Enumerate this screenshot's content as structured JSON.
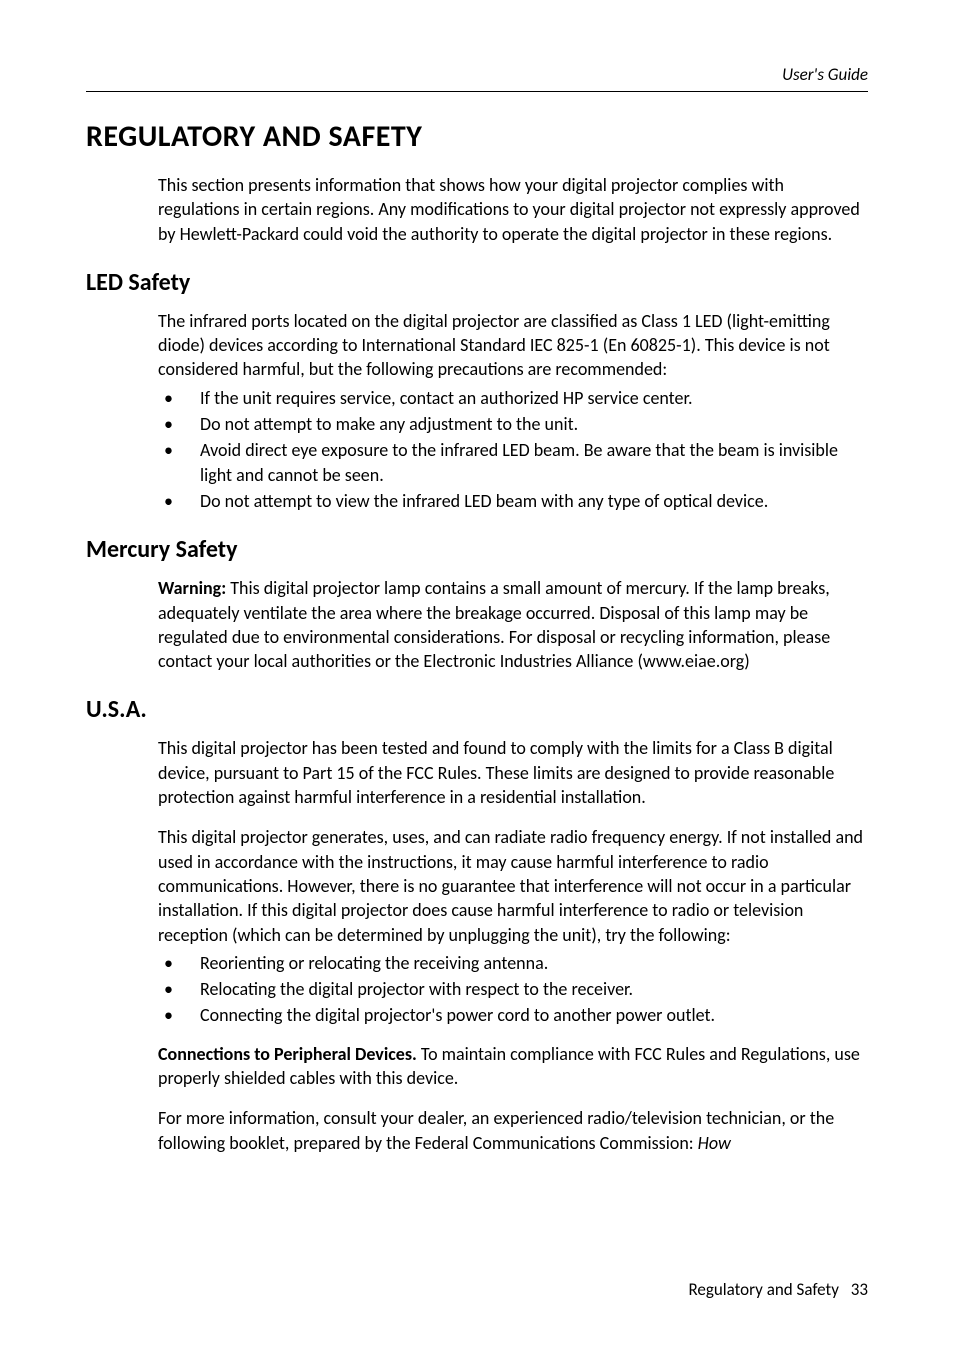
{
  "runningHead": "User's Guide",
  "title": "REGULATORY AND SAFETY",
  "intro": "This section presents information that shows how your digital projector complies with regulations in certain regions. Any modifications to your digital projector not expressly approved by Hewlett-Packard could void the authority to operate the digital projector in these regions.",
  "led": {
    "heading": "LED Safety",
    "p1": "The infrared ports located on the digital projector are classified as Class 1 LED (light-emitting diode) devices according to International Standard IEC 825-1 (En 60825-1). This device is not considered harmful, but the following precautions are recommended:",
    "bullets": [
      "If the unit requires service, contact an authorized HP service center.",
      "Do not attempt to make any adjustment to the unit.",
      "Avoid direct eye exposure to the infrared LED beam. Be aware that the beam is invisible light and cannot be seen.",
      "Do not attempt to view the infrared LED beam with any type of optical device."
    ]
  },
  "mercury": {
    "heading": "Mercury Safety",
    "warnLabel": "Warning:",
    "warnText": " This digital projector lamp contains a small amount of mercury. If the lamp breaks, adequately ventilate the area where the breakage occurred. Disposal of this lamp may be regulated due to environmental considerations. For disposal or recycling information, please contact your local authorities or the Electronic Industries Alliance (www.eiae.org)"
  },
  "usa": {
    "heading": "U.S.A.",
    "p1": "This digital projector has been tested and found to comply with the limits for a Class B digital device, pursuant to Part 15 of the FCC Rules. These limits are designed to provide reasonable protection against harmful interference in a residential installation.",
    "p2": "This digital projector generates, uses, and can radiate radio frequency energy. If not installed and used in accordance with the instructions, it may cause harmful interference to radio communications. However, there is no guarantee that interference will not occur in a particular installation.  If this digital projector does cause harmful interference to radio or television reception (which can be determined by unplugging the unit), try the following:",
    "bullets": [
      "Reorienting or relocating the receiving antenna.",
      "Relocating the digital projector with respect to the receiver.",
      "Connecting the digital projector's power cord to another power outlet."
    ],
    "connLabel": "Connections to Peripheral Devices.",
    "connText": " To maintain compliance with FCC Rules and Regulations, use properly shielded cables with this device.",
    "p3a": "For more information, consult your dealer, an experienced radio/television technician, or the following booklet, prepared by the Federal Communications Commission: ",
    "p3b": "How"
  },
  "footer": {
    "label": "Regulatory and Safety",
    "page": "33"
  }
}
